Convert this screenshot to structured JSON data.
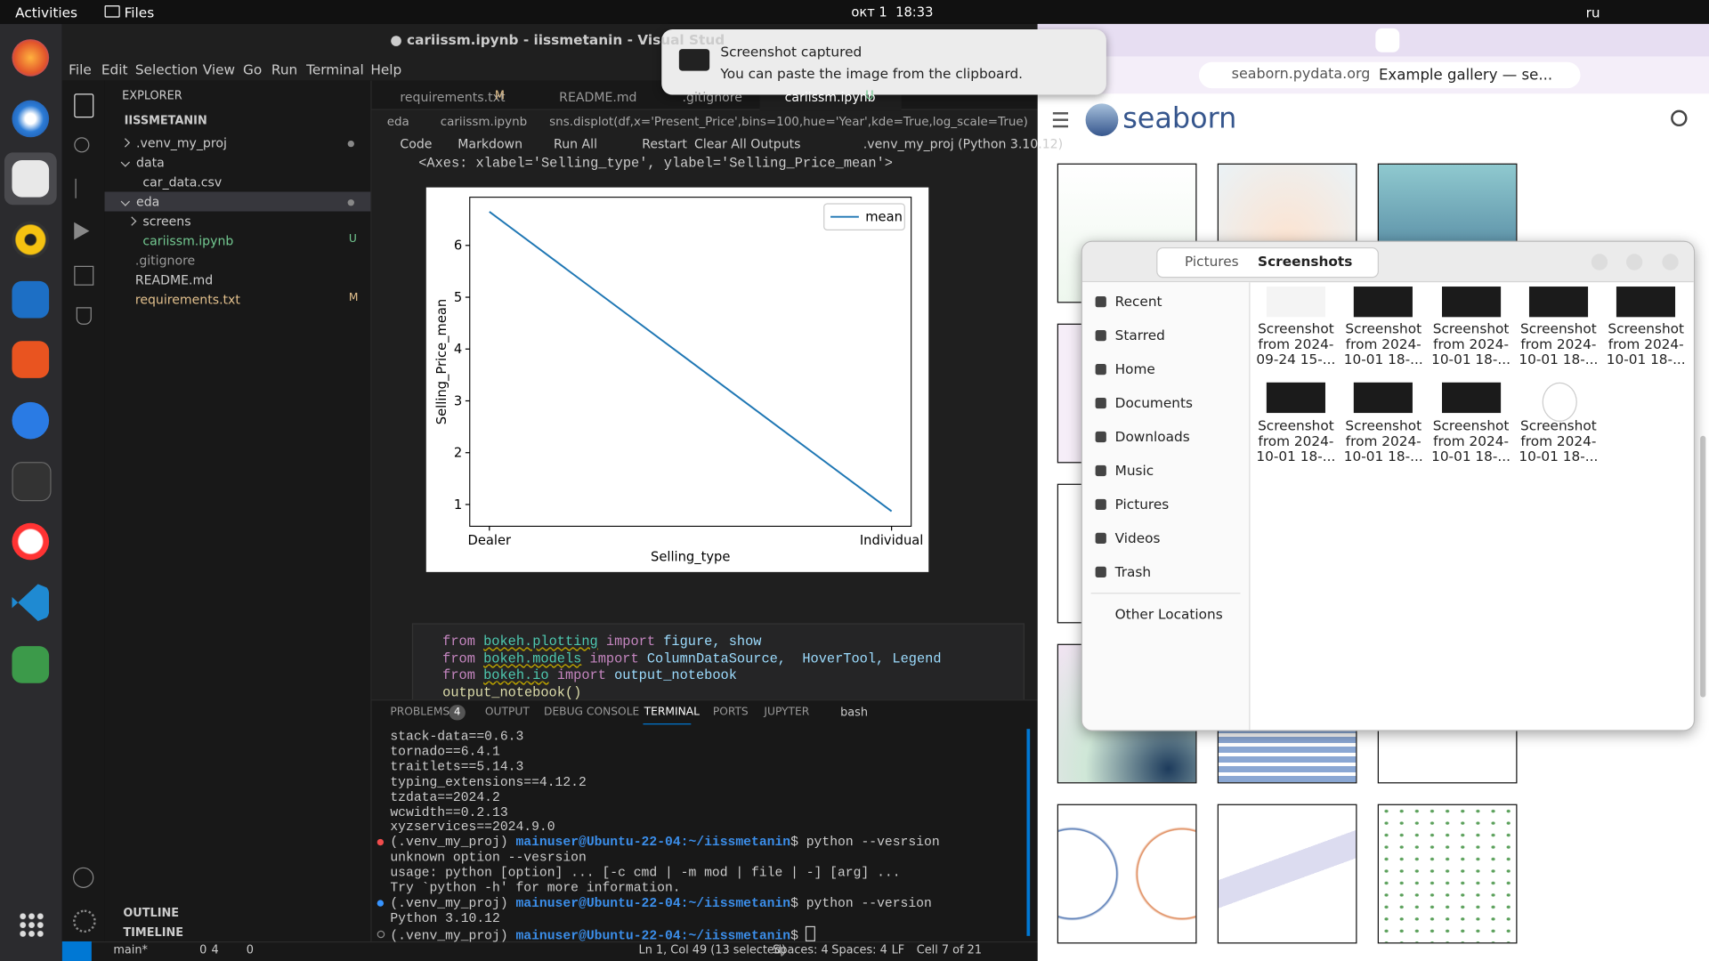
{
  "topbar": {
    "activities": "Activities",
    "app": "Files",
    "clock": "окт 1  18:33",
    "lang": "ru"
  },
  "vscode": {
    "title": "● cariissm.ipynb - iissmetanin - Visual Stud",
    "menu": [
      "File",
      "Edit",
      "Selection",
      "View",
      "Go",
      "Run",
      "Terminal",
      "Help"
    ],
    "explorer": {
      "header": "EXPLORER",
      "root": "IISSMETANIN",
      "items": [
        {
          "label": ".venv_my_proj"
        },
        {
          "label": "data"
        },
        {
          "label": "car_data.csv"
        },
        {
          "label": "eda"
        },
        {
          "label": "screens"
        },
        {
          "label": "cariissm.ipynb",
          "badge": "U"
        },
        {
          "label": ".gitignore"
        },
        {
          "label": "README.md"
        },
        {
          "label": "requirements.txt",
          "badge": "M"
        }
      ],
      "outline": "OUTLINE",
      "timeline": "TIMELINE"
    },
    "tabs": [
      {
        "label": "requirements.txt",
        "badge": "M"
      },
      {
        "label": "README.md"
      },
      {
        "label": ".gitignore"
      },
      {
        "label": "cariissm.ipynb",
        "badge": "U"
      }
    ],
    "breadcrumb": [
      "eda",
      "cariissm.ipynb",
      "sns.displot(df,x='Present_Price',bins=100,hue='Year',kde=True,log_scale=True)"
    ],
    "toolbar": [
      "Code",
      "Markdown",
      "Run All",
      "Restart",
      "Clear All Outputs"
    ],
    "kernel": ".venv_my_proj (Python 3.10.12)",
    "output_text": "<Axes: xlabel='Selling_type', ylabel='Selling_Price_mean'>",
    "code": [
      [
        "from",
        "bokeh.plotting",
        "import",
        "figure, show"
      ],
      [
        "from",
        "bokeh.models",
        "import",
        "ColumnDataSource,  HoverTool, Legend"
      ],
      [
        "from",
        "bokeh.io",
        "import",
        "output_notebook"
      ],
      [
        "output_notebook()"
      ]
    ],
    "panel_tabs": [
      "PROBLEMS",
      "OUTPUT",
      "DEBUG CONSOLE",
      "TERMINAL",
      "PORTS",
      "JUPYTER"
    ],
    "problems_count": 4,
    "shell": "bash",
    "terminal": [
      {
        "text": "stack-data==0.6.3"
      },
      {
        "text": "tornado==6.4.1"
      },
      {
        "text": "traitlets==5.14.3"
      },
      {
        "text": "typing_extensions==4.12.2"
      },
      {
        "text": "tzdata==2024.2"
      },
      {
        "text": "wcwidth==0.2.13"
      },
      {
        "text": "xyzservices==2024.9.0"
      },
      {
        "env": "(.venv_my_proj)",
        "host": "mainuser@Ubuntu-22-04:~/iissmetanin",
        "cmd": "$ python --vesrsion"
      },
      {
        "text": "unknown option --vesrsion"
      },
      {
        "text": "usage: python [option] ... [-c cmd | -m mod | file | -] [arg] ..."
      },
      {
        "text": "Try `python -h' for more information."
      },
      {
        "env": "(.venv_my_proj)",
        "host": "mainuser@Ubuntu-22-04:~/iissmetanin",
        "cmd": "$ python --version"
      },
      {
        "text": "Python 3.10.12"
      },
      {
        "env": "(.venv_my_proj)",
        "host": "mainuser@Ubuntu-22-04:~/iissmetanin",
        "cmd": "$"
      }
    ],
    "status": {
      "branch": "main*",
      "errors": 0,
      "warnings": 4,
      "ports": 0,
      "position": "Ln 1, Col 49 (13 selected)",
      "spaces_1": "Spaces: 4",
      "spaces_2": "Spaces: 4",
      "eol": "LF",
      "cell": "Cell 7 of 21"
    }
  },
  "chart_data": {
    "type": "line",
    "xlabel": "Selling_type",
    "ylabel": "Selling_Price_mean",
    "categories": [
      "Dealer",
      "Individual"
    ],
    "series": [
      {
        "name": "mean",
        "color": "#1f77b4",
        "values": [
          6.65,
          0.87
        ]
      }
    ],
    "ylim": [
      0.58,
      6.93
    ],
    "yticks": [
      1,
      2,
      3,
      4,
      5,
      6
    ],
    "legend": "upper right"
  },
  "notification": {
    "title": "Screenshot captured",
    "body": "You can paste the image from the clipboard."
  },
  "browser": {
    "url": "seaborn.pydata.org",
    "tab_title": "Example gallery — se...",
    "logo": "seaborn"
  },
  "files": {
    "path": [
      "Pictures",
      "Screenshots"
    ],
    "sidebar": [
      "Recent",
      "Starred",
      "Home",
      "Documents",
      "Downloads",
      "Music",
      "Pictures",
      "Videos",
      "Trash"
    ],
    "other_locations": "Other Locations",
    "items": [
      [
        "Screenshot",
        "from 2024-",
        "09-24 15-..."
      ],
      [
        "Screenshot",
        "from 2024-",
        "10-01 18-..."
      ],
      [
        "Screenshot",
        "from 2024-",
        "10-01 18-..."
      ],
      [
        "Screenshot",
        "from 2024-",
        "10-01 18-..."
      ],
      [
        "Screenshot",
        "from 2024-",
        "10-01 18-..."
      ],
      [
        "Screenshot",
        "from 2024-",
        "10-01 18-..."
      ],
      [
        "Screenshot",
        "from 2024-",
        "10-01 18-..."
      ],
      [
        "Screenshot",
        "from 2024-",
        "10-01 18-..."
      ],
      [
        "Screenshot",
        "from 2024-",
        "10-01 18-..."
      ]
    ]
  }
}
